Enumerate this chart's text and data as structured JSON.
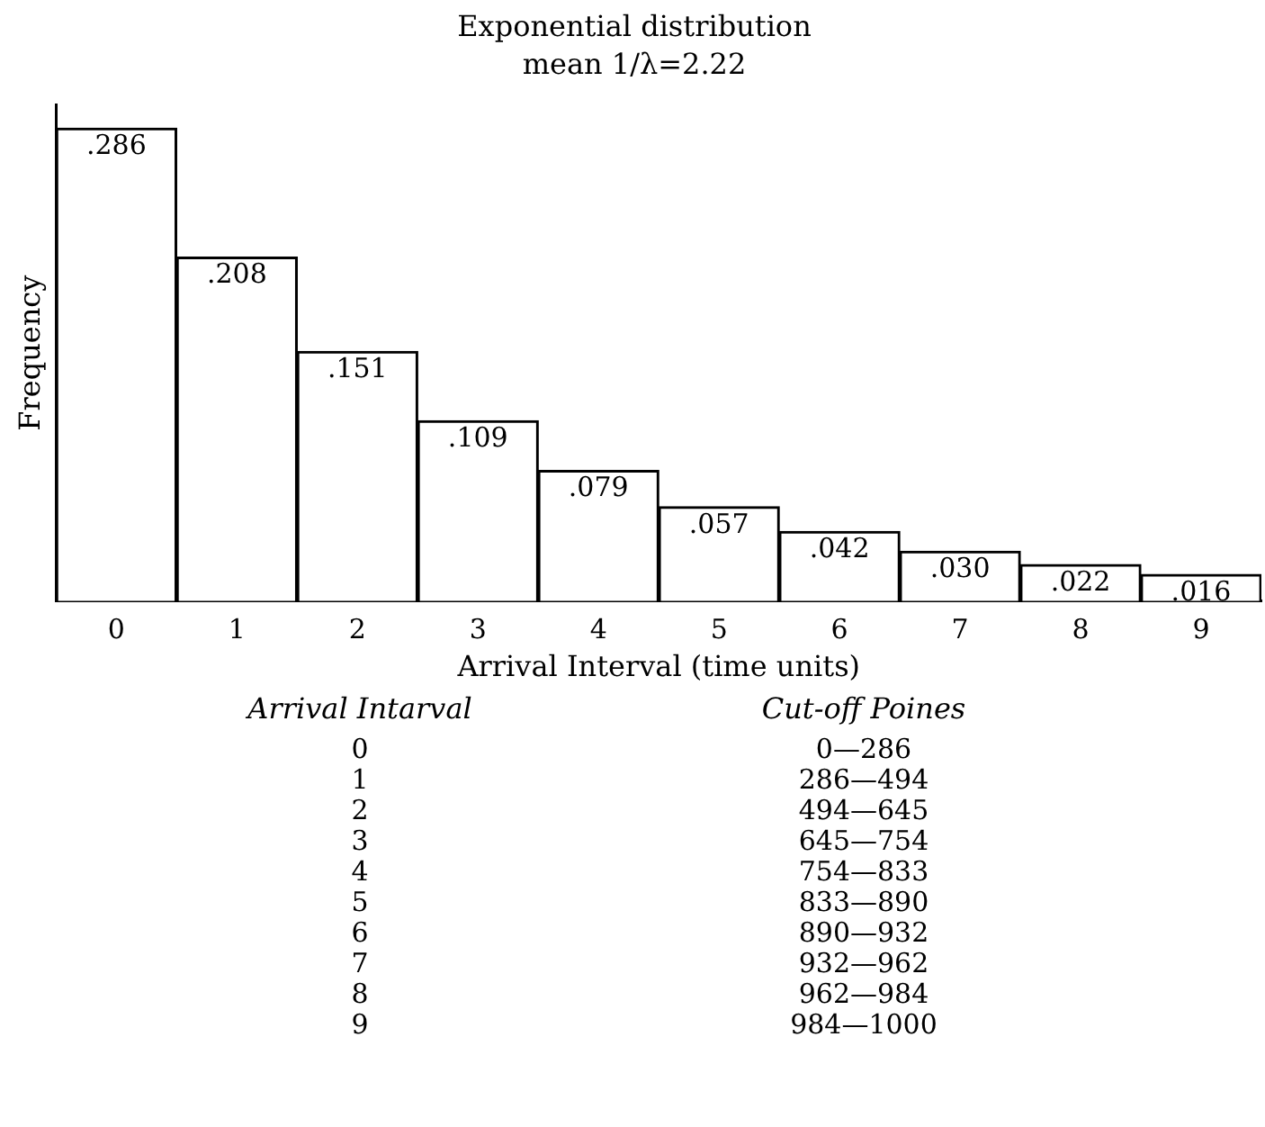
{
  "chart_data": {
    "type": "bar",
    "title": "Exponential distribution",
    "subtitle": "mean 1/λ=2.22",
    "xlabel": "Arrival Interval (time units)",
    "ylabel": "Frequency",
    "categories": [
      "0",
      "1",
      "2",
      "3",
      "4",
      "5",
      "6",
      "7",
      "8",
      "9"
    ],
    "values": [
      0.286,
      0.208,
      0.151,
      0.109,
      0.079,
      0.057,
      0.042,
      0.03,
      0.022,
      0.016
    ],
    "value_labels": [
      ".286",
      ".208",
      ".151",
      ".109",
      ".079",
      ".057",
      ".042",
      ".030",
      ".022",
      ".016"
    ],
    "color": "#ffffff",
    "grid": false,
    "tick_labels": "x",
    "annotations": [
      "Arrival Intarval",
      "Cut-off Poines",
      "0",
      "0—286",
      "1",
      "286—494",
      "2",
      "494—645",
      "3",
      "645—754",
      "4",
      "754—833",
      "5",
      "833—890",
      "6",
      "890—932",
      "7",
      "932—962",
      "8",
      "962—984",
      "9",
      "984—1000"
    ]
  }
}
